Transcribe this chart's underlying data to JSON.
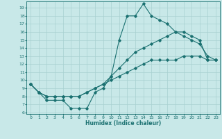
{
  "xlabel": "Humidex (Indice chaleur)",
  "bg_color": "#c8e8e8",
  "line_color": "#1a7070",
  "grid_color": "#a8d0d0",
  "xlim": [
    -0.5,
    23.5
  ],
  "ylim": [
    5.8,
    19.8
  ],
  "xticks": [
    0,
    1,
    2,
    3,
    4,
    5,
    6,
    7,
    8,
    9,
    10,
    11,
    12,
    13,
    14,
    15,
    16,
    17,
    18,
    19,
    20,
    21,
    22,
    23
  ],
  "yticks": [
    6,
    7,
    8,
    9,
    10,
    11,
    12,
    13,
    14,
    15,
    16,
    17,
    18,
    19
  ],
  "curve1_x": [
    0,
    1,
    2,
    3,
    4,
    5,
    6,
    7,
    8,
    9,
    10,
    11,
    12,
    13,
    14,
    15,
    16,
    17,
    18,
    19,
    20,
    21,
    22,
    23
  ],
  "curve1_y": [
    9.5,
    8.5,
    7.5,
    7.5,
    7.5,
    6.5,
    6.5,
    6.5,
    8.5,
    9.0,
    10.5,
    15.0,
    18.0,
    18.0,
    19.5,
    18.0,
    17.5,
    17.0,
    16.0,
    15.5,
    15.0,
    14.5,
    13.0,
    12.5
  ],
  "curve2_x": [
    0,
    1,
    2,
    3,
    4,
    5,
    6,
    7,
    8,
    9,
    10,
    11,
    12,
    13,
    14,
    15,
    16,
    17,
    18,
    19,
    20,
    21,
    22,
    23
  ],
  "curve2_y": [
    9.5,
    8.5,
    8.0,
    8.0,
    8.0,
    8.0,
    8.0,
    8.5,
    9.0,
    9.5,
    10.5,
    11.5,
    12.5,
    13.5,
    14.0,
    14.5,
    15.0,
    15.5,
    16.0,
    16.0,
    15.5,
    15.0,
    12.5,
    12.5
  ],
  "curve3_x": [
    0,
    1,
    2,
    3,
    4,
    5,
    6,
    7,
    8,
    9,
    10,
    11,
    12,
    13,
    14,
    15,
    16,
    17,
    18,
    19,
    20,
    21,
    22,
    23
  ],
  "curve3_y": [
    9.5,
    8.5,
    8.0,
    8.0,
    8.0,
    8.0,
    8.0,
    8.5,
    9.0,
    9.5,
    10.0,
    10.5,
    11.0,
    11.5,
    12.0,
    12.5,
    12.5,
    12.5,
    12.5,
    13.0,
    13.0,
    13.0,
    12.5,
    12.5
  ]
}
